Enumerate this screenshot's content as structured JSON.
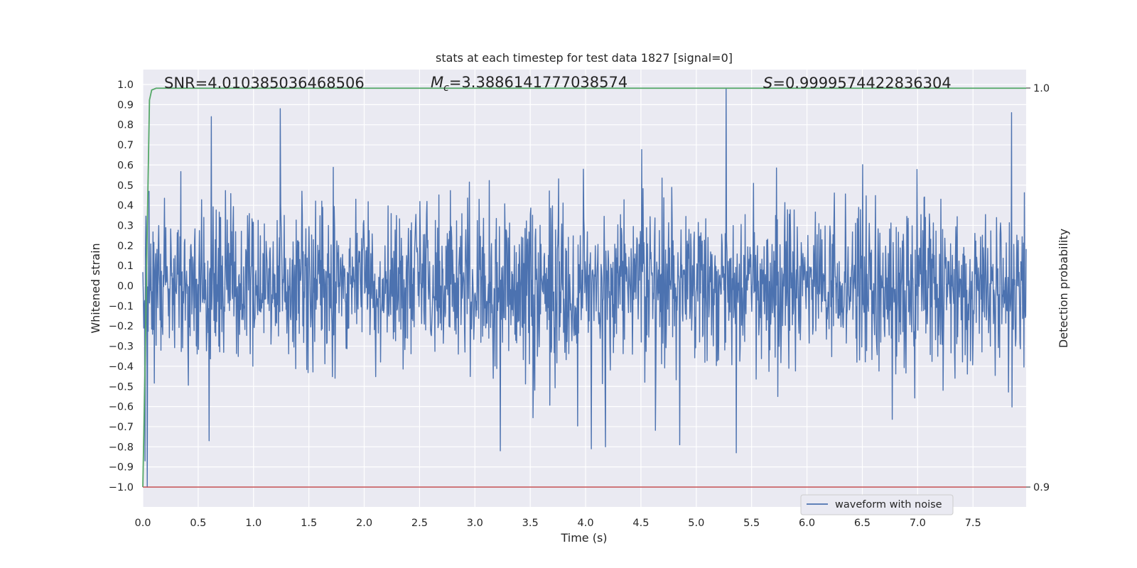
{
  "chart_data": {
    "type": "line",
    "title": "stats at each timestep for test data 1827 [signal=0]",
    "xlabel": "Time (s)",
    "ylabel": "Whitened strain",
    "y2label": "Detection probability",
    "xlim": [
      0.0,
      7.98
    ],
    "ylim": [
      -1.0,
      1.0
    ],
    "y2lim": [
      0.9,
      1.0
    ],
    "grid": true,
    "legend_position": "lower-right",
    "x_ticks": [
      "0.0",
      "0.5",
      "1.0",
      "1.5",
      "2.0",
      "2.5",
      "3.0",
      "3.5",
      "4.0",
      "4.5",
      "5.0",
      "5.5",
      "6.0",
      "6.5",
      "7.0",
      "7.5"
    ],
    "y_ticks": [
      "1.0",
      "0.9",
      "0.8",
      "0.7",
      "0.6",
      "0.5",
      "0.4",
      "0.3",
      "0.2",
      "0.1",
      "0.0",
      "−0.1",
      "−0.2",
      "−0.3",
      "−0.4",
      "−0.5",
      "−0.6",
      "−0.7",
      "−0.8",
      "−0.9",
      "−1.0"
    ],
    "y2_ticks": [
      "1.0",
      "0.9"
    ],
    "annotations": {
      "snr_label": "SNR=4.010385036468506",
      "mc_symbol": "M",
      "mc_sub": "c",
      "mc_value": "=3.3886141777038574",
      "s_symbol": "S",
      "s_value": "=0.9999574422836304"
    },
    "series": [
      {
        "name": "waveform with noise",
        "axis": "left",
        "color": "#4c72b0",
        "description_values": {
          "x_start": 0.0,
          "x_end": 7.98,
          "sample_count": 2000,
          "typical_range": [
            -0.3,
            0.3
          ],
          "spikes": [
            {
              "x": 0.04,
              "y": -1.0
            },
            {
              "x": 0.02,
              "y": -0.87
            },
            {
              "x": 0.62,
              "y": 0.84
            },
            {
              "x": 1.24,
              "y": 0.88
            },
            {
              "x": 3.23,
              "y": -0.82
            },
            {
              "x": 4.05,
              "y": -0.81
            },
            {
              "x": 5.27,
              "y": 0.98
            },
            {
              "x": 5.36,
              "y": -0.83
            },
            {
              "x": 7.85,
              "y": 0.86
            },
            {
              "x": 0.6,
              "y": -0.77
            },
            {
              "x": 4.18,
              "y": -0.8
            },
            {
              "x": 4.85,
              "y": -0.79
            }
          ]
        }
      },
      {
        "name": "",
        "axis": "right",
        "color": "#55a868",
        "x": [
          0.0,
          0.02,
          0.04,
          0.06,
          0.08,
          0.12,
          7.98
        ],
        "y": [
          0.9,
          0.93,
          0.965,
          0.997,
          0.9995,
          0.99995,
          0.99996
        ]
      },
      {
        "name": "",
        "axis": "left",
        "color": "#c44e52",
        "x": [
          0.0,
          7.98
        ],
        "y": [
          -1.0,
          -1.0
        ]
      }
    ],
    "legend": [
      {
        "label": "waveform with noise",
        "color": "#4c72b0"
      }
    ]
  }
}
